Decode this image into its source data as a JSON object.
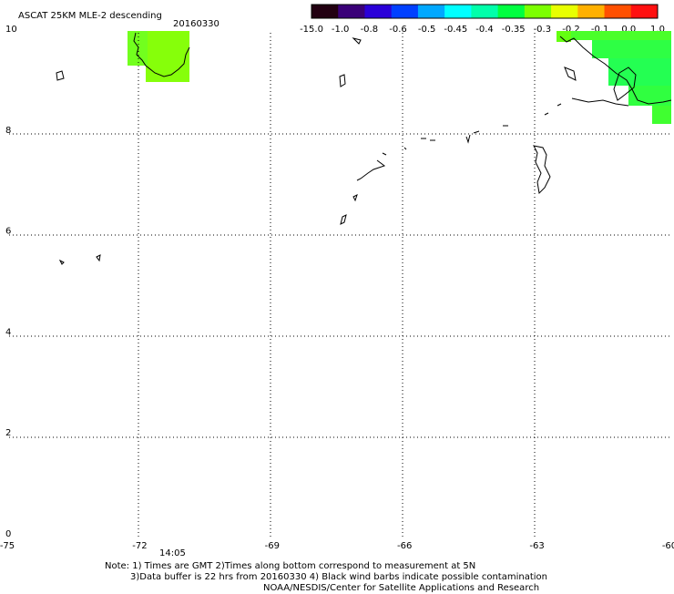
{
  "header": {
    "title": "ASCAT 25KM MLE-2 descending",
    "date": "20160330"
  },
  "colorbar": {
    "labels": [
      "-15.0",
      "-1.0",
      "-0.8",
      "-0.6",
      "-0.5",
      "-0.45",
      "-0.4",
      "-0.35",
      "-0.3",
      "-0.2",
      "-0.1",
      "0.0",
      "1.0"
    ],
    "colors": [
      "#220011",
      "#3a0078",
      "#2a00d8",
      "#0040ff",
      "#00a8ff",
      "#00ffff",
      "#00ffaa",
      "#00ff40",
      "#7cff00",
      "#e8ff00",
      "#ffb000",
      "#ff5000",
      "#ff1010"
    ]
  },
  "axes": {
    "x_ticks": [
      "-75",
      "-72",
      "-69",
      "-66",
      "-63",
      "-60"
    ],
    "y_ticks": [
      "0",
      "2",
      "4",
      "6",
      "8",
      "10"
    ],
    "x_range": [
      -75,
      -60
    ],
    "y_range": [
      0,
      10
    ]
  },
  "time_label": {
    "text": "14:05",
    "color": "#cc2200"
  },
  "notes": {
    "line1": "Note: 1) Times are GMT 2)Times along bottom correspond to measurement at 5N",
    "line2": "3)Data buffer is 22 hrs from 20160330 4) Black wind barbs indicate possible contamination",
    "line3": "NOAA/NESDIS/Center for Satellite Applications and Research"
  }
}
